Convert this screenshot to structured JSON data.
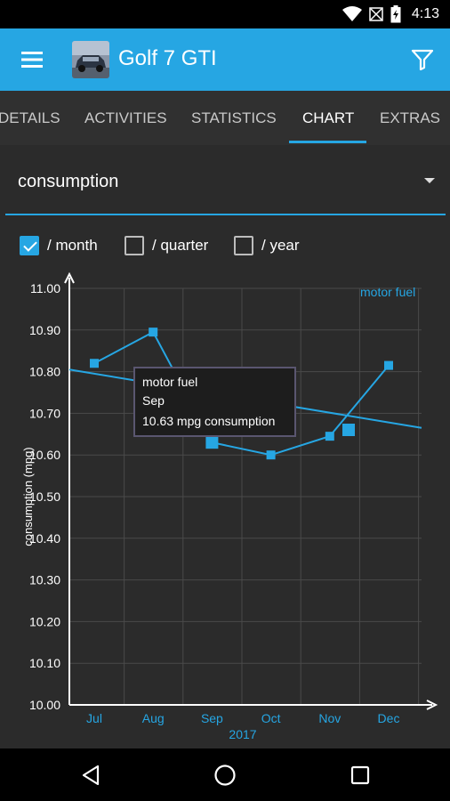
{
  "status_bar": {
    "time": "4:13"
  },
  "app_bar": {
    "title": "Golf 7 GTI",
    "accent_color": "#26a6e3"
  },
  "tabs": [
    {
      "label": "DETAILS",
      "active": false
    },
    {
      "label": "ACTIVITIES",
      "active": false
    },
    {
      "label": "STATISTICS",
      "active": false
    },
    {
      "label": "CHART",
      "active": true
    },
    {
      "label": "EXTRAS",
      "active": false
    }
  ],
  "spinner": {
    "selected": "consumption"
  },
  "periods": [
    {
      "label": "/ month",
      "checked": true
    },
    {
      "label": "/ quarter",
      "checked": false
    },
    {
      "label": "/ year",
      "checked": false
    }
  ],
  "chart_data": {
    "type": "line",
    "ylabel": "consumption (mpg)",
    "xlabel": "2017",
    "ylim": [
      10.0,
      11.0
    ],
    "yticks": [
      "11.00",
      "10.90",
      "10.80",
      "10.70",
      "10.60",
      "10.50",
      "10.40",
      "10.30",
      "10.20",
      "10.10",
      "10.00"
    ],
    "categories": [
      "Jul",
      "Aug",
      "Sep",
      "Oct",
      "Nov",
      "Dec"
    ],
    "series": [
      {
        "name": "motor fuel",
        "color": "#26a6e3",
        "values": [
          10.82,
          10.895,
          10.63,
          10.6,
          10.645,
          10.815
        ]
      }
    ],
    "trendline": {
      "start": 10.805,
      "end": 10.665
    },
    "legend": "top-right",
    "grid": true,
    "tooltip": {
      "series": "motor fuel",
      "category": "Sep",
      "value_text": "10.63 mpg consumption"
    }
  }
}
